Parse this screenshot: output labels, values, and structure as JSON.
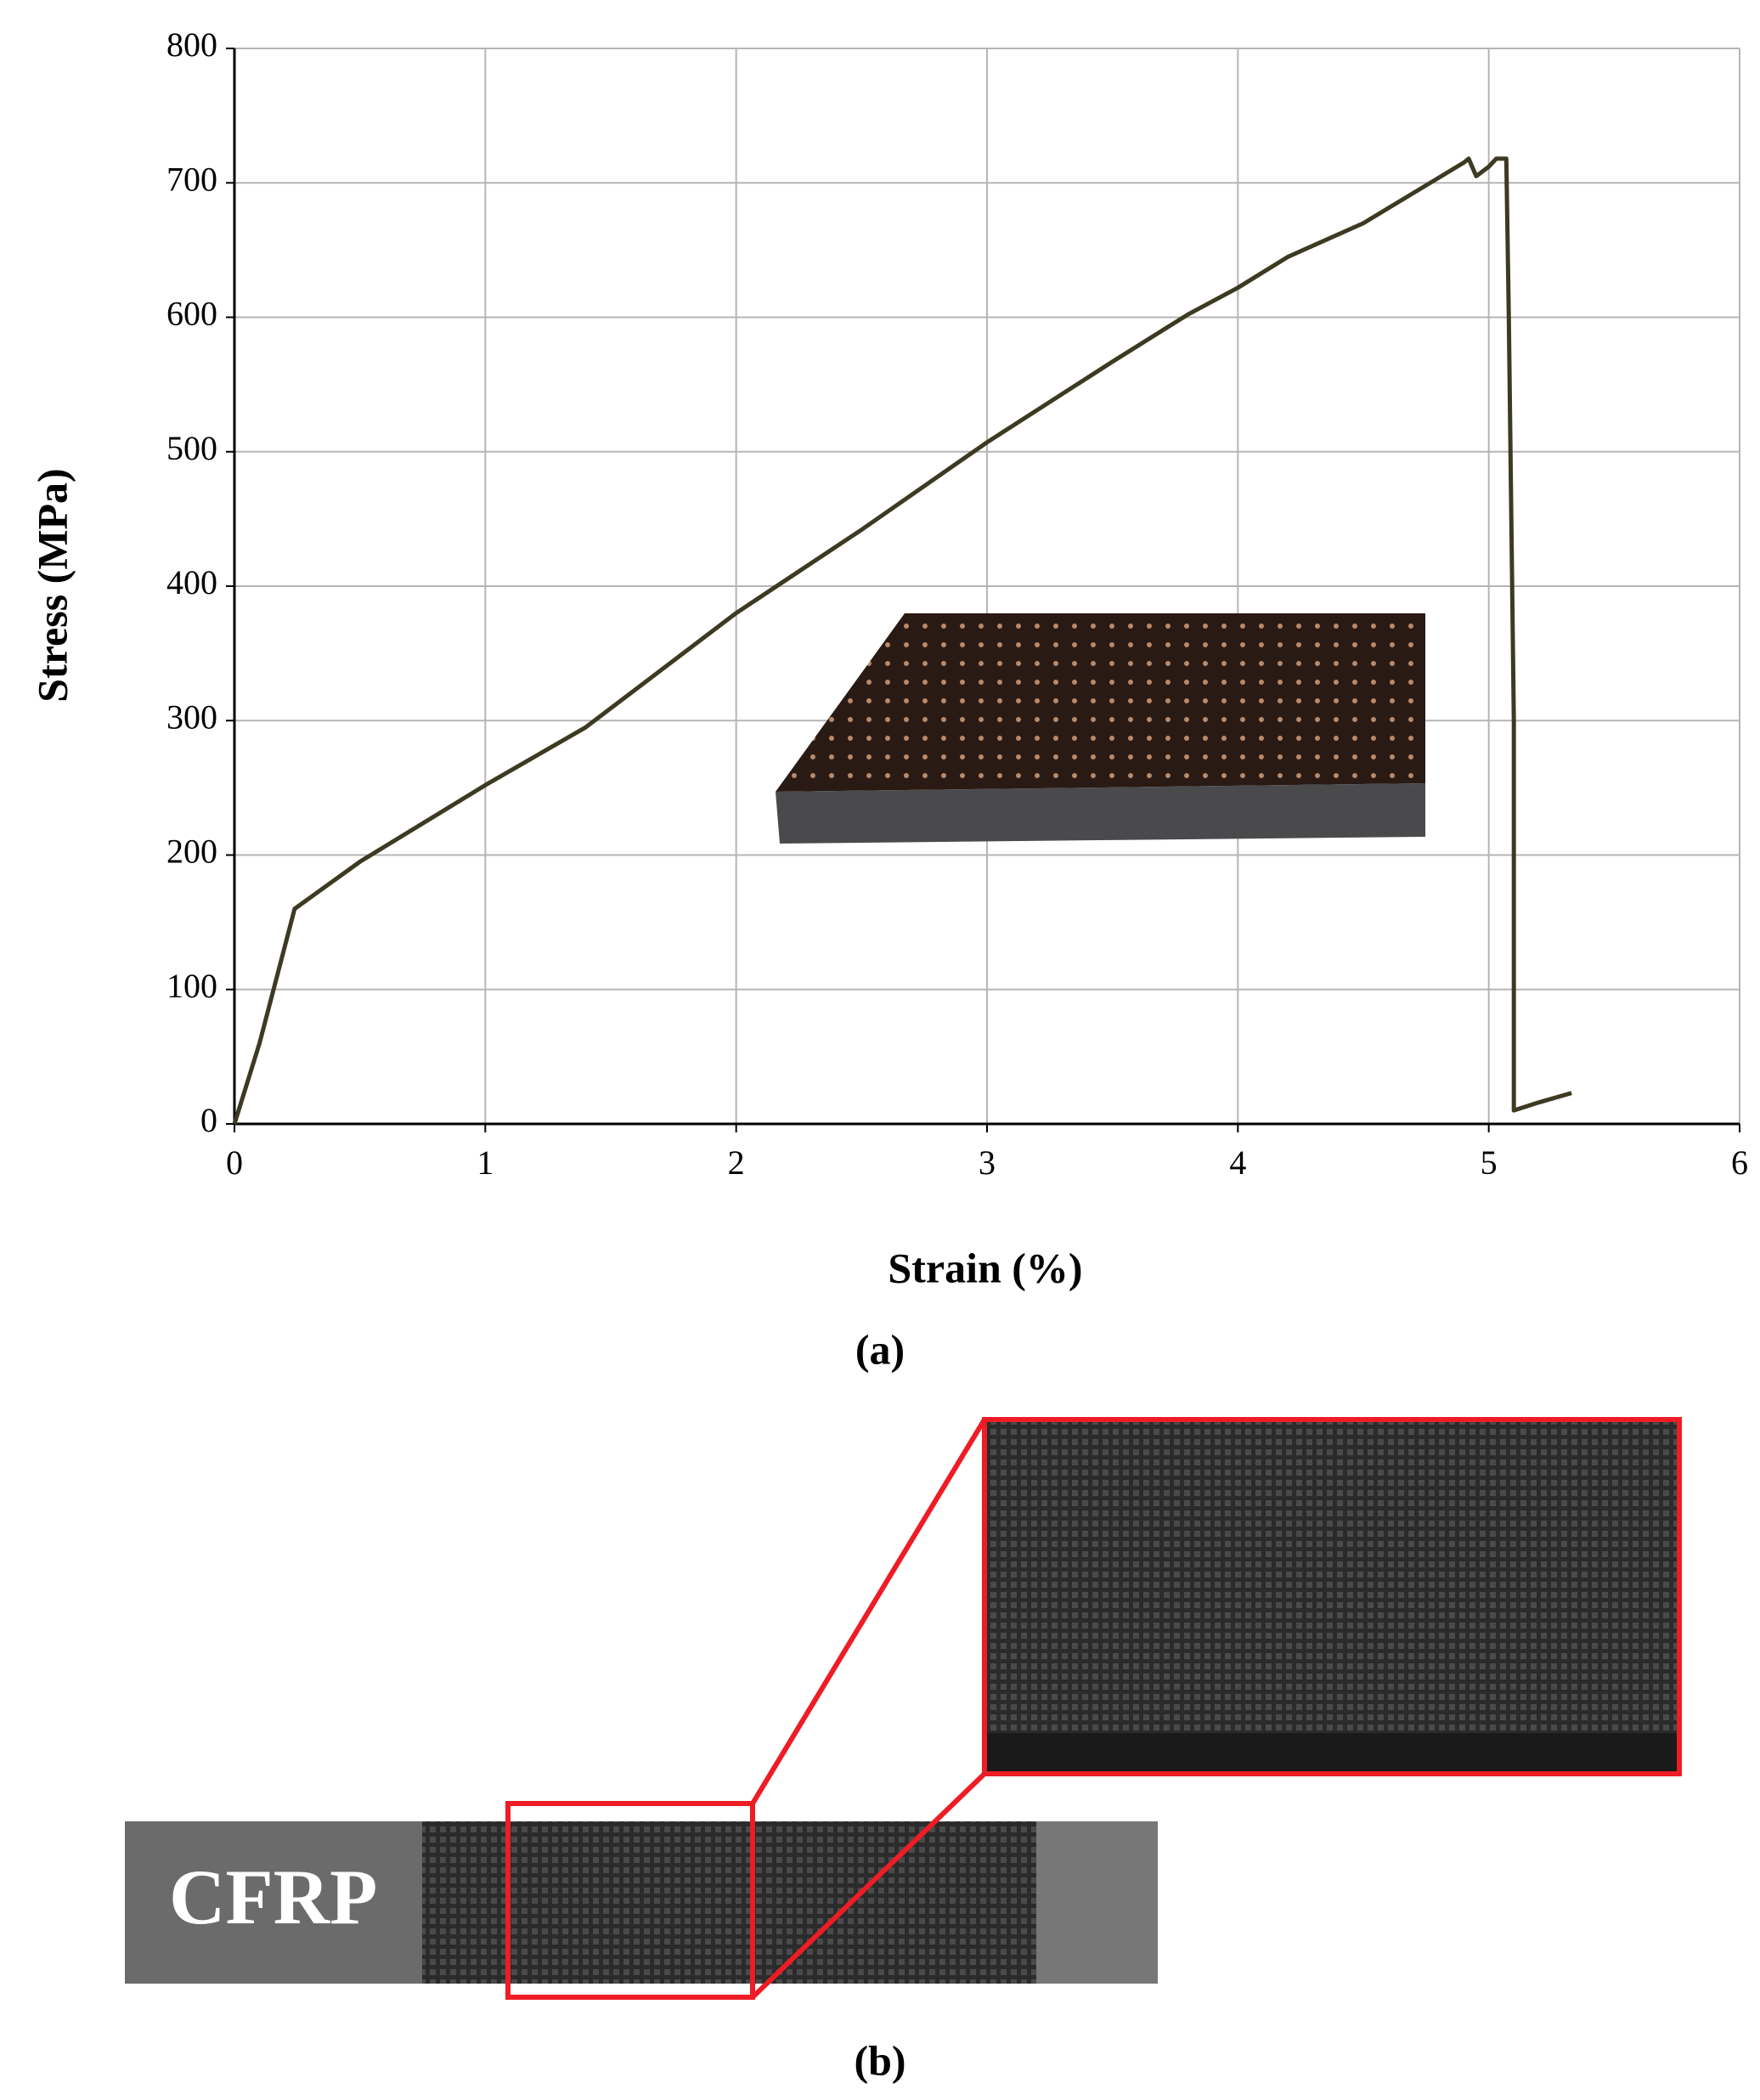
{
  "chart_data": {
    "type": "line",
    "x_label": "Strain (%)",
    "y_label": "Stress (MPa)",
    "panel_label": "(a)",
    "x": [
      0,
      0.1,
      0.24,
      0.5,
      1,
      1.4,
      2,
      2.5,
      3,
      3.5,
      3.8,
      4,
      4.2,
      4.5,
      4.9,
      4.92,
      4.95,
      5.0,
      5.03,
      5.07,
      5.08,
      5.1,
      5.1,
      5.2,
      5.33
    ],
    "series": [
      {
        "color": "#3d3a22",
        "values": [
          0,
          60,
          160,
          195,
          252,
          295,
          380,
          442,
          507,
          567,
          602,
          622,
          645,
          670,
          715,
          718,
          705,
          712,
          718,
          718,
          600,
          300,
          10,
          16,
          23
        ]
      }
    ],
    "xlim": [
      0,
      6
    ],
    "xticks": [
      0,
      1,
      2,
      3,
      4,
      5,
      6
    ],
    "ylim": [
      0,
      800
    ],
    "yticks": [
      0,
      100,
      200,
      300,
      400,
      500,
      600,
      700,
      800
    ],
    "grid": true
  },
  "photo_b": {
    "label": "CFRP",
    "panel_label": "(b)"
  }
}
